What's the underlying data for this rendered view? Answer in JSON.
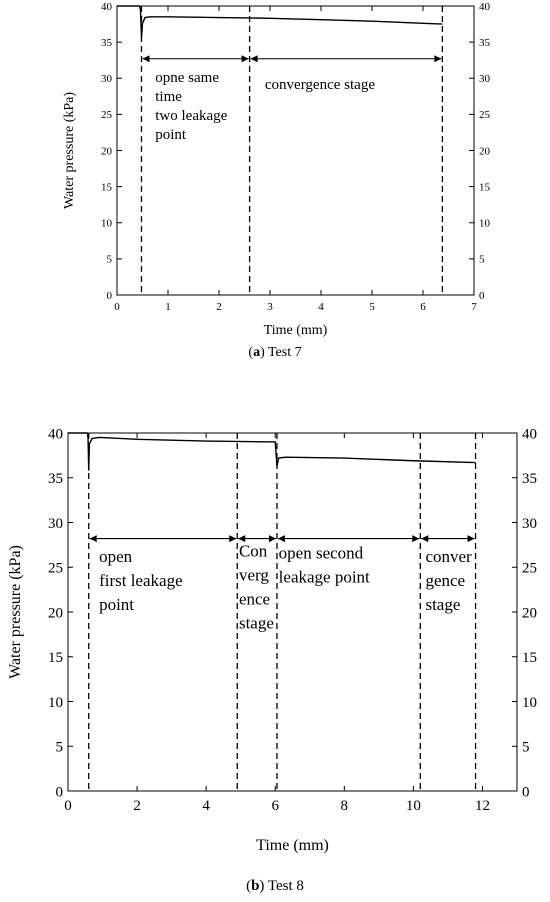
{
  "chart_data": [
    {
      "type": "line",
      "caption_letter": "a",
      "caption_text": " Test 7",
      "xlabel": "Time (mm)",
      "ylabel": "Water pressure (kPa)",
      "xlim": [
        0,
        7
      ],
      "ylim": [
        0,
        40
      ],
      "xticks": [
        0,
        1,
        2,
        3,
        4,
        5,
        6,
        7
      ],
      "yticks": [
        0,
        5,
        10,
        15,
        20,
        25,
        30,
        35,
        40
      ],
      "series": [
        {
          "x": [
            0,
            0.44,
            0.46,
            0.48,
            0.5,
            0.55,
            0.65,
            1,
            2,
            2.6,
            3,
            4,
            5,
            6,
            6.38
          ],
          "y": [
            40,
            40,
            39.5,
            35.6,
            37.6,
            38.4,
            38.5,
            38.5,
            38.4,
            38.35,
            38.3,
            38.1,
            37.9,
            37.6,
            37.5
          ]
        }
      ],
      "vlines": [
        0.48,
        2.6,
        6.38
      ],
      "arrows": [
        {
          "x1": 0.48,
          "x2": 2.6,
          "y": 32.7
        },
        {
          "x1": 2.6,
          "x2": 6.38,
          "y": 32.7
        }
      ],
      "annotations": [
        {
          "lines": [
            "opne same",
            "time",
            "two leakage",
            "point"
          ],
          "x": 0.75,
          "y": 29.5
        },
        {
          "lines": [
            "convergence stage"
          ],
          "x": 2.9,
          "y": 28.5
        }
      ]
    },
    {
      "type": "line",
      "caption_letter": "b",
      "caption_text": " Test 8",
      "xlabel": "Time (mm)",
      "ylabel": "Water pressure (kPa)",
      "xlim": [
        0,
        13
      ],
      "ylim": [
        0,
        40
      ],
      "xticks": [
        0,
        2,
        4,
        6,
        8,
        10,
        12
      ],
      "yticks": [
        0,
        5,
        10,
        15,
        20,
        25,
        30,
        35,
        40
      ],
      "series": [
        {
          "x": [
            0,
            0.56,
            0.58,
            0.6,
            0.62,
            0.7,
            0.9,
            2,
            4,
            6.0,
            6.05,
            6.1,
            6.3,
            8,
            10,
            11.8
          ],
          "y": [
            40,
            40,
            39.5,
            35.8,
            38.8,
            39.4,
            39.5,
            39.3,
            39.1,
            39.0,
            36.3,
            37.2,
            37.3,
            37.2,
            36.9,
            36.7
          ]
        }
      ],
      "vlines": [
        0.6,
        4.9,
        6.05,
        10.2,
        11.8
      ],
      "arrows": [
        {
          "x1": 0.6,
          "x2": 4.9,
          "y": 28.2
        },
        {
          "x1": 4.9,
          "x2": 6.05,
          "y": 28.2
        },
        {
          "x1": 6.05,
          "x2": 10.2,
          "y": 28.2
        },
        {
          "x1": 10.2,
          "x2": 11.8,
          "y": 28.2
        }
      ],
      "annotations": [
        {
          "lines": [
            "open",
            "first leakage",
            "point"
          ],
          "x": 0.9,
          "y": 25.6
        },
        {
          "lines": [
            "Con",
            "verg",
            "ence",
            "stage"
          ],
          "x": 4.95,
          "y": 26.2
        },
        {
          "lines": [
            "open second",
            "leakage point"
          ],
          "x": 6.1,
          "y": 26.0
        },
        {
          "lines": [
            "conver",
            "gence",
            "stage"
          ],
          "x": 10.35,
          "y": 25.6
        }
      ]
    }
  ]
}
